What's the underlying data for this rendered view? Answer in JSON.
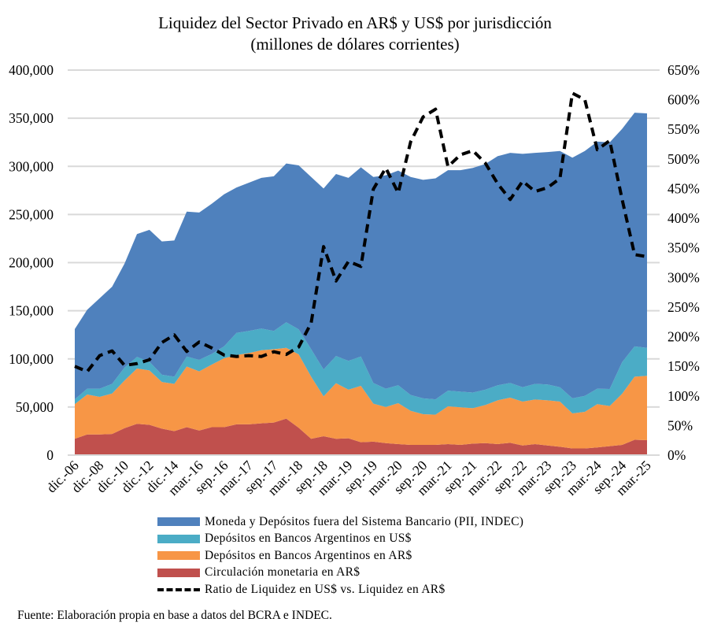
{
  "chart_data": {
    "type": "area",
    "stacked": true,
    "title": "Liquidez del Sector Privado en AR$ y US$ por jurisdicción",
    "subtitle": "(millones de dólares corrientes)",
    "x": [
      "dic.-06",
      "dic.-07",
      "dic.-08",
      "dic.-09",
      "dic.-10",
      "dic.-11",
      "dic.-12",
      "dic.-13",
      "dic.-14",
      "dic.-15",
      "mar.-16",
      "jun.-16",
      "sep.-16",
      "dic.-16",
      "mar.-17",
      "jun.-17",
      "sep.-17",
      "dic.-17",
      "mar.-18",
      "jun.-18",
      "sep.-18",
      "dic.-18",
      "mar.-19",
      "jun.-19",
      "sep.-19",
      "dic.-19",
      "mar.-20",
      "jun.-20",
      "sep.-20",
      "dic.-20",
      "mar.-21",
      "jun.-21",
      "sep.-21",
      "dic.-21",
      "mar.-22",
      "jun.-22",
      "sep.-22",
      "dic.-22",
      "mar.-23",
      "jun.-23",
      "sep.-23",
      "dic.-23",
      "mar.-24",
      "jun.-24",
      "sep.-24",
      "dic.-24",
      "mar.-25"
    ],
    "x_tick_labels": [
      "dic.-06",
      "dic.-08",
      "dic.-10",
      "dic.-12",
      "dic.-14",
      "mar.-16",
      "sep.-16",
      "mar.-17",
      "sep.-17",
      "mar.-18",
      "sep.-18",
      "mar.-19",
      "sep.-19",
      "mar.-20",
      "sep.-20",
      "mar.-21",
      "sep.-21",
      "mar.-22",
      "sep.-22",
      "mar.-23",
      "sep.-23",
      "mar.-24",
      "sep.-24",
      "mar.-25"
    ],
    "xlabel": "",
    "ylabel": "",
    "ylim": [
      0,
      400000
    ],
    "y_ticks": [
      "0",
      "50,000",
      "100,000",
      "150,000",
      "200,000",
      "250,000",
      "300,000",
      "350,000",
      "400,000"
    ],
    "y2lim": [
      0,
      650
    ],
    "y2_ticks": [
      "0%",
      "50%",
      "100%",
      "150%",
      "200%",
      "250%",
      "300%",
      "350%",
      "400%",
      "450%",
      "500%",
      "550%",
      "600%",
      "650%"
    ],
    "grid": true,
    "legend_position": "bottom",
    "series": [
      {
        "name": "Circulación monetaria en AR$",
        "color": "#C0504D",
        "axis": "left",
        "values": [
          17000,
          21500,
          21500,
          22000,
          28000,
          32500,
          31500,
          27500,
          25000,
          29000,
          25600,
          29000,
          29000,
          32000,
          32000,
          33000,
          33800,
          37900,
          28400,
          17000,
          19600,
          17000,
          17500,
          13400,
          14000,
          12500,
          11500,
          10600,
          10600,
          10600,
          11500,
          10600,
          12000,
          12500,
          11500,
          12800,
          10000,
          11500,
          10000,
          8700,
          7000,
          7000,
          8000,
          9300,
          10600,
          16000,
          15500
        ]
      },
      {
        "name": "Depósitos en Bancos Argentinos en AR$",
        "color": "#F79646",
        "axis": "left",
        "values": [
          36000,
          41500,
          39000,
          42000,
          49500,
          57500,
          56500,
          48500,
          49000,
          63000,
          61400,
          65000,
          71600,
          72000,
          74000,
          76000,
          76200,
          73600,
          76300,
          64500,
          41400,
          57700,
          50500,
          58600,
          39500,
          37500,
          42500,
          35400,
          31900,
          31400,
          39200,
          39100,
          36800,
          39500,
          45500,
          46900,
          45600,
          46300,
          47000,
          46900,
          36400,
          38000,
          45000,
          41700,
          53200,
          65500,
          66900
        ]
      },
      {
        "name": "Depósitos en Bancos Argentinos en US$",
        "color": "#4BACC6",
        "axis": "left",
        "values": [
          5000,
          6000,
          8500,
          10000,
          13500,
          12000,
          9000,
          7500,
          7500,
          10500,
          12000,
          11000,
          12400,
          23000,
          23000,
          22500,
          19000,
          26500,
          26000,
          28500,
          28000,
          28300,
          30000,
          30500,
          21500,
          19000,
          18600,
          16500,
          16500,
          16000,
          16300,
          16300,
          16200,
          16000,
          15600,
          15300,
          15000,
          16200,
          16400,
          15000,
          15600,
          16600,
          16000,
          17700,
          32800,
          31500,
          29100
        ]
      },
      {
        "name": "Moneda y Depósitos fuera del Sistema Bancario (PII, INDEC)",
        "color": "#4F81BD",
        "axis": "left",
        "values": [
          73000,
          82000,
          94000,
          101000,
          108000,
          127700,
          137000,
          138500,
          141500,
          150500,
          153000,
          156000,
          158000,
          151000,
          154000,
          156500,
          160700,
          165000,
          170300,
          179000,
          188000,
          189000,
          190000,
          196500,
          214000,
          221700,
          223000,
          226500,
          227000,
          229500,
          229000,
          230000,
          233400,
          234500,
          238000,
          239000,
          242400,
          240000,
          241400,
          245400,
          250000,
          254400,
          256700,
          256300,
          242400,
          242700,
          243500
        ]
      },
      {
        "name": "Ratio de Liquidez en US$ vs. Liquidez en AR$",
        "color": "#000000",
        "axis": "right",
        "style": "dashed",
        "unit": "%",
        "values": [
          150,
          141,
          168,
          176,
          151.5,
          154.5,
          161,
          190,
          203,
          175,
          191,
          181,
          169,
          166.5,
          168,
          166.5,
          174.5,
          170,
          182.5,
          223,
          352,
          294,
          327,
          318.5,
          449,
          484.7,
          442.6,
          529,
          571,
          584,
          487,
          507,
          514,
          493,
          458,
          431.5,
          462.5,
          445,
          451.5,
          467,
          611,
          600,
          515.6,
          531,
          431.5,
          338.5,
          335
        ]
      }
    ],
    "legend": [
      "Moneda y Depósitos fuera del Sistema Bancario (PII, INDEC)",
      "Depósitos en Bancos Argentinos en US$",
      "Depósitos en Bancos Argentinos en AR$",
      "Circulación monetaria en AR$",
      "Ratio de Liquidez en US$ vs. Liquidez en AR$"
    ],
    "source": "Fuente: Elaboración propia en base a datos del BCRA e INDEC."
  }
}
